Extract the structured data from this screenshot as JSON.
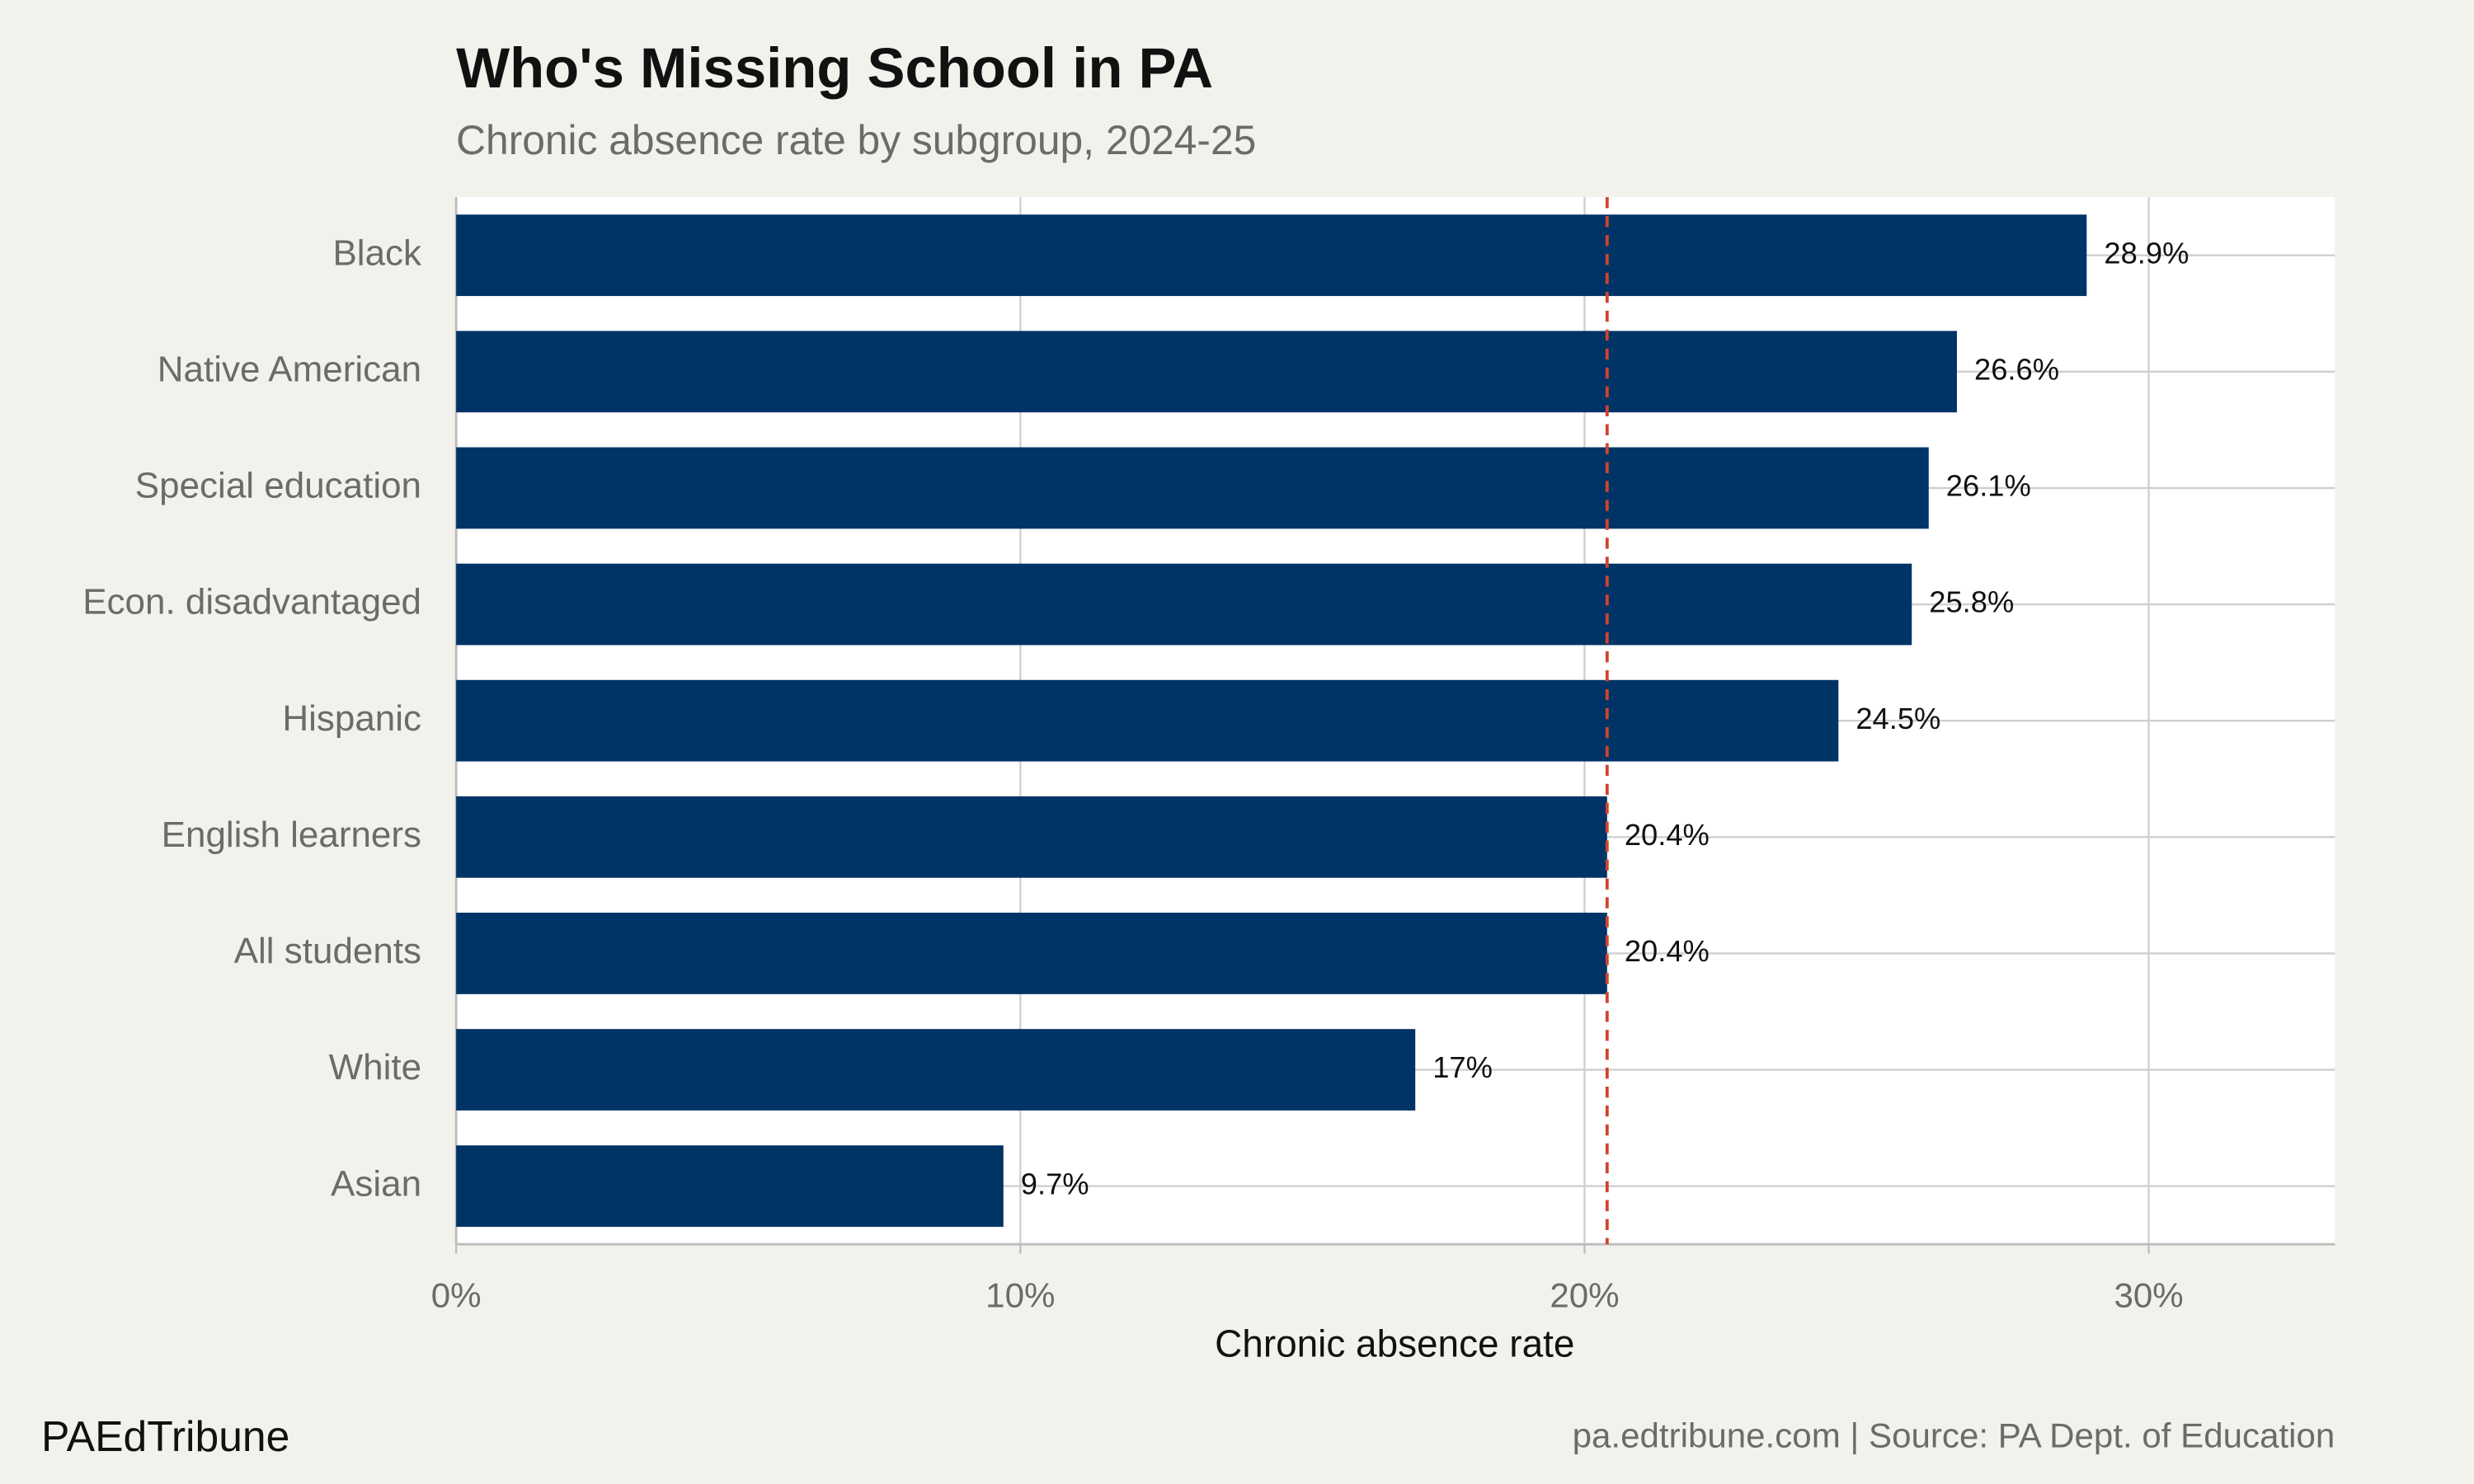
{
  "chart_data": {
    "type": "bar",
    "orientation": "horizontal",
    "title": "Who's Missing School in PA",
    "subtitle": "Chronic absence rate by subgroup, 2024-25",
    "x_label": "Chronic absence rate",
    "categories": [
      "Black",
      "Native American",
      "Special education",
      "Econ. disadvantaged",
      "Hispanic",
      "English learners",
      "All students",
      "White",
      "Asian"
    ],
    "values": [
      28.9,
      26.6,
      26.1,
      25.8,
      24.5,
      20.4,
      20.4,
      17,
      9.7
    ],
    "value_labels": [
      "28.9%",
      "26.6%",
      "26.1%",
      "25.8%",
      "24.5%",
      "20.4%",
      "20.4%",
      "17%",
      "9.7%"
    ],
    "color": "#003366",
    "reference_line": 20.4,
    "reference_color": "#d0442c",
    "xlim": [
      0,
      33.3
    ],
    "xticks": [
      {
        "value": 0,
        "label": "0%"
      },
      {
        "value": 10,
        "label": "10%"
      },
      {
        "value": 20,
        "label": "20%"
      },
      {
        "value": 30,
        "label": "30%"
      }
    ],
    "grid": true,
    "brand": "PAEdTribune",
    "source": "pa.edtribune.com | Source: PA Dept. of Education"
  }
}
